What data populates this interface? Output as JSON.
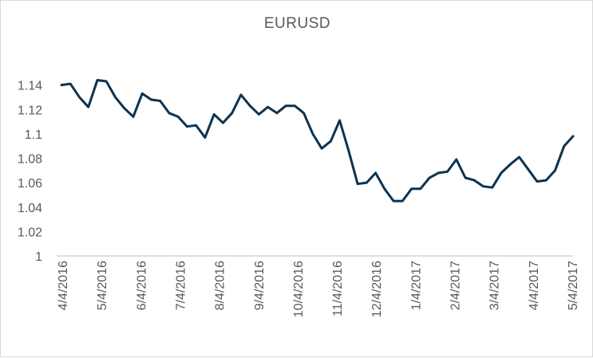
{
  "chart_data": {
    "type": "line",
    "title": "EURUSD",
    "xlabel": "",
    "ylabel": "",
    "ylim": [
      1,
      1.16
    ],
    "y_ticks": [
      "1",
      "1.02",
      "1.04",
      "1.06",
      "1.08",
      "1.1",
      "1.12",
      "1.14"
    ],
    "x_tick_labels": [
      "4/4/2016",
      "5/4/2016",
      "6/4/2016",
      "7/4/2016",
      "8/4/2016",
      "9/4/2016",
      "10/4/2016",
      "11/4/2016",
      "12/4/2016",
      "1/4/2017",
      "2/4/2017",
      "3/4/2017",
      "4/4/2017",
      "5/4/2017"
    ],
    "grid": false,
    "line_color": "#0d3350",
    "series": [
      {
        "values": [
          1.14,
          1.141,
          1.13,
          1.122,
          1.144,
          1.143,
          1.13,
          1.121,
          1.114,
          1.133,
          1.128,
          1.127,
          1.117,
          1.114,
          1.106,
          1.107,
          1.097,
          1.116,
          1.109,
          1.117,
          1.132,
          1.123,
          1.116,
          1.122,
          1.117,
          1.123,
          1.123,
          1.117,
          1.1,
          1.088,
          1.094,
          1.111,
          1.086,
          1.059,
          1.06,
          1.068,
          1.055,
          1.045,
          1.045,
          1.055,
          1.055,
          1.064,
          1.068,
          1.069,
          1.079,
          1.064,
          1.062,
          1.057,
          1.056,
          1.068,
          1.075,
          1.081,
          1.071,
          1.061,
          1.062,
          1.07,
          1.09,
          1.098
        ]
      }
    ]
  }
}
